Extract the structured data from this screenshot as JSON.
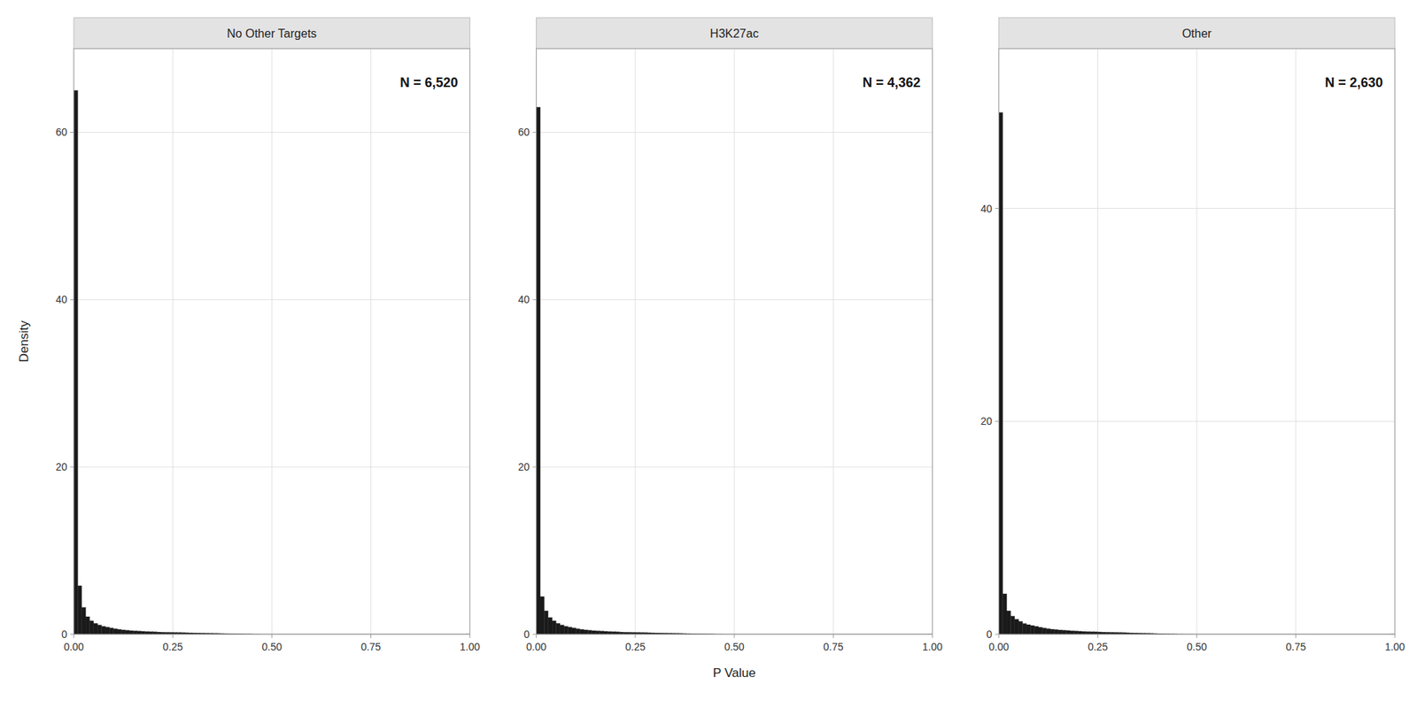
{
  "chart_data": [
    {
      "type": "histogram",
      "title": "No Other Targets",
      "annotation": "N = 6,520",
      "ylabel": "Density",
      "bins": [
        0,
        0.01,
        0.02,
        0.03,
        0.04,
        0.05,
        0.06,
        0.07,
        0.08,
        0.09,
        0.1,
        0.11,
        0.12,
        0.13,
        0.14,
        0.15,
        0.16,
        0.17,
        0.18,
        0.19,
        0.2,
        0.21,
        0.22,
        0.23,
        0.24,
        0.25,
        0.26,
        0.27,
        0.28,
        0.29,
        0.3,
        0.31,
        0.32,
        0.33,
        0.34,
        0.35,
        0.36,
        0.37,
        0.38,
        0.39,
        0.4,
        0.41,
        0.42,
        0.43,
        0.44,
        0.45,
        0.46,
        0.47,
        0.48,
        0.49,
        0.5,
        0.51,
        0.52,
        0.53,
        0.54,
        0.55,
        0.56,
        0.57,
        0.58,
        0.59,
        0.6,
        0.61,
        0.62,
        0.63,
        0.64,
        0.65,
        0.66,
        0.67,
        0.68,
        0.69,
        0.7,
        0.71,
        0.72,
        0.73,
        0.74,
        0.75,
        0.76,
        0.77,
        0.78,
        0.79,
        0.8,
        0.81,
        0.82,
        0.83,
        0.84,
        0.85,
        0.86,
        0.87,
        0.88,
        0.89,
        0.9,
        0.91,
        0.92,
        0.93,
        0.94,
        0.95,
        0.96,
        0.97,
        0.98,
        0.99,
        1
      ],
      "values": [
        65.0,
        5.8,
        3.2,
        2.1,
        1.6,
        1.3,
        1.1,
        0.95,
        0.85,
        0.75,
        0.65,
        0.58,
        0.52,
        0.47,
        0.43,
        0.4,
        0.37,
        0.35,
        0.32,
        0.3,
        0.28,
        0.26,
        0.24,
        0.23,
        0.22,
        0.21,
        0.2,
        0.19,
        0.18,
        0.17,
        0.16,
        0.15,
        0.14,
        0.13,
        0.12,
        0.11,
        0.1,
        0.09,
        0.08,
        0.07,
        0.06,
        0.05,
        0.04,
        0.03,
        0.02,
        0.01,
        0.01,
        0.005,
        0.005,
        0.005,
        0.005,
        0.005,
        0.005,
        0.005,
        0.005,
        0.005,
        0.005,
        0.005,
        0.005,
        0.005,
        0.005,
        0.005,
        0.005,
        0.005,
        0.005,
        0.005,
        0.005,
        0.005,
        0.005,
        0.005,
        0.005,
        0.005,
        0.005,
        0.005,
        0.005,
        0.005,
        0.005,
        0.005,
        0.005,
        0.005,
        0.005,
        0.005,
        0.005,
        0.005,
        0.005,
        0.005,
        0.005,
        0.005,
        0.005,
        0.005,
        0.005,
        0.005,
        0.005,
        0.005,
        0.005,
        0.005,
        0.005,
        0.005,
        0.005,
        0.01
      ],
      "color": "#1a1a1a",
      "xlim": [
        0,
        1
      ],
      "xticks": [
        {
          "value": 0,
          "label": "0.00"
        },
        {
          "value": 0.25,
          "label": "0.25"
        },
        {
          "value": 0.5,
          "label": "0.50"
        },
        {
          "value": 0.75,
          "label": "0.75"
        },
        {
          "value": 1,
          "label": "1.00"
        }
      ],
      "ylim": [
        0,
        70
      ],
      "yticks": [
        0,
        20,
        40,
        60
      ],
      "grid": true
    },
    {
      "type": "histogram",
      "title": "H3K27ac",
      "annotation": "N = 4,362",
      "xlabel": "P Value",
      "bins": [
        0,
        0.01,
        0.02,
        0.03,
        0.04,
        0.05,
        0.06,
        0.07,
        0.08,
        0.09,
        0.1,
        0.11,
        0.12,
        0.13,
        0.14,
        0.15,
        0.16,
        0.17,
        0.18,
        0.19,
        0.2,
        0.21,
        0.22,
        0.23,
        0.24,
        0.25,
        0.26,
        0.27,
        0.28,
        0.29,
        0.3,
        0.31,
        0.32,
        0.33,
        0.34,
        0.35,
        0.36,
        0.37,
        0.38,
        0.39,
        0.4,
        0.41,
        0.42,
        0.43,
        0.44,
        0.45,
        0.46,
        0.47,
        0.48,
        0.49,
        0.5,
        0.51,
        0.52,
        0.53,
        0.54,
        0.55,
        0.56,
        0.57,
        0.58,
        0.59,
        0.6,
        0.61,
        0.62,
        0.63,
        0.64,
        0.65,
        0.66,
        0.67,
        0.68,
        0.69,
        0.7,
        0.71,
        0.72,
        0.73,
        0.74,
        0.75,
        0.76,
        0.77,
        0.78,
        0.79,
        0.8,
        0.81,
        0.82,
        0.83,
        0.84,
        0.85,
        0.86,
        0.87,
        0.88,
        0.89,
        0.9,
        0.91,
        0.92,
        0.93,
        0.94,
        0.95,
        0.96,
        0.97,
        0.98,
        0.99,
        1
      ],
      "values": [
        63.0,
        4.5,
        2.8,
        2.0,
        1.6,
        1.3,
        1.1,
        0.95,
        0.85,
        0.75,
        0.65,
        0.58,
        0.52,
        0.47,
        0.43,
        0.4,
        0.37,
        0.35,
        0.32,
        0.3,
        0.28,
        0.26,
        0.24,
        0.23,
        0.22,
        0.21,
        0.2,
        0.19,
        0.18,
        0.17,
        0.16,
        0.15,
        0.14,
        0.13,
        0.12,
        0.11,
        0.1,
        0.09,
        0.08,
        0.07,
        0.06,
        0.05,
        0.04,
        0.03,
        0.02,
        0.01,
        0.01,
        0.005,
        0.005,
        0.005,
        0.005,
        0.005,
        0.005,
        0.005,
        0.005,
        0.005,
        0.005,
        0.005,
        0.005,
        0.005,
        0.005,
        0.005,
        0.005,
        0.005,
        0.005,
        0.005,
        0.005,
        0.005,
        0.005,
        0.005,
        0.005,
        0.005,
        0.005,
        0.005,
        0.005,
        0.005,
        0.005,
        0.005,
        0.005,
        0.005,
        0.005,
        0.005,
        0.005,
        0.005,
        0.005,
        0.005,
        0.005,
        0.005,
        0.005,
        0.005,
        0.005,
        0.005,
        0.005,
        0.005,
        0.005,
        0.005,
        0.005,
        0.005,
        0.005,
        0.01
      ],
      "color": "#1a1a1a",
      "xlim": [
        0,
        1
      ],
      "xticks": [
        {
          "value": 0,
          "label": "0.00"
        },
        {
          "value": 0.25,
          "label": "0.25"
        },
        {
          "value": 0.5,
          "label": "0.50"
        },
        {
          "value": 0.75,
          "label": "0.75"
        },
        {
          "value": 1,
          "label": "1.00"
        }
      ],
      "ylim": [
        0,
        70
      ],
      "yticks": [
        0,
        20,
        40,
        60
      ],
      "grid": true
    },
    {
      "type": "histogram",
      "title": "Other",
      "annotation": "N = 2,630",
      "bins": [
        0,
        0.01,
        0.02,
        0.03,
        0.04,
        0.05,
        0.06,
        0.07,
        0.08,
        0.09,
        0.1,
        0.11,
        0.12,
        0.13,
        0.14,
        0.15,
        0.16,
        0.17,
        0.18,
        0.19,
        0.2,
        0.21,
        0.22,
        0.23,
        0.24,
        0.25,
        0.26,
        0.27,
        0.28,
        0.29,
        0.3,
        0.31,
        0.32,
        0.33,
        0.34,
        0.35,
        0.36,
        0.37,
        0.38,
        0.39,
        0.4,
        0.41,
        0.42,
        0.43,
        0.44,
        0.45,
        0.46,
        0.47,
        0.48,
        0.49,
        0.5,
        0.51,
        0.52,
        0.53,
        0.54,
        0.55,
        0.56,
        0.57,
        0.58,
        0.59,
        0.6,
        0.61,
        0.62,
        0.63,
        0.64,
        0.65,
        0.66,
        0.67,
        0.68,
        0.69,
        0.7,
        0.71,
        0.72,
        0.73,
        0.74,
        0.75,
        0.76,
        0.77,
        0.78,
        0.79,
        0.8,
        0.81,
        0.82,
        0.83,
        0.84,
        0.85,
        0.86,
        0.87,
        0.88,
        0.89,
        0.9,
        0.91,
        0.92,
        0.93,
        0.94,
        0.95,
        0.96,
        0.97,
        0.98,
        0.99,
        1
      ],
      "values": [
        49.0,
        3.8,
        2.2,
        1.7,
        1.4,
        1.2,
        1.0,
        0.9,
        0.82,
        0.74,
        0.65,
        0.58,
        0.52,
        0.47,
        0.43,
        0.4,
        0.37,
        0.35,
        0.32,
        0.3,
        0.28,
        0.26,
        0.24,
        0.23,
        0.22,
        0.21,
        0.2,
        0.19,
        0.18,
        0.17,
        0.16,
        0.15,
        0.14,
        0.13,
        0.12,
        0.11,
        0.1,
        0.09,
        0.08,
        0.07,
        0.06,
        0.05,
        0.04,
        0.03,
        0.02,
        0.01,
        0.01,
        0.005,
        0.005,
        0.005,
        0.005,
        0.005,
        0.005,
        0.005,
        0.005,
        0.005,
        0.005,
        0.005,
        0.005,
        0.005,
        0.005,
        0.005,
        0.005,
        0.005,
        0.005,
        0.005,
        0.005,
        0.005,
        0.005,
        0.005,
        0.005,
        0.005,
        0.005,
        0.005,
        0.005,
        0.005,
        0.005,
        0.005,
        0.005,
        0.005,
        0.005,
        0.005,
        0.005,
        0.005,
        0.005,
        0.005,
        0.005,
        0.005,
        0.005,
        0.005,
        0.005,
        0.005,
        0.005,
        0.005,
        0.005,
        0.005,
        0.005,
        0.005,
        0.005,
        0.01
      ],
      "color": "#1a1a1a",
      "xlim": [
        0,
        1
      ],
      "xticks": [
        {
          "value": 0,
          "label": "0.00"
        },
        {
          "value": 0.25,
          "label": "0.25"
        },
        {
          "value": 0.5,
          "label": "0.50"
        },
        {
          "value": 0.75,
          "label": "0.75"
        },
        {
          "value": 1,
          "label": "1.00"
        }
      ],
      "ylim": [
        0,
        55
      ],
      "yticks": [
        0,
        20,
        40
      ],
      "grid": true
    }
  ]
}
